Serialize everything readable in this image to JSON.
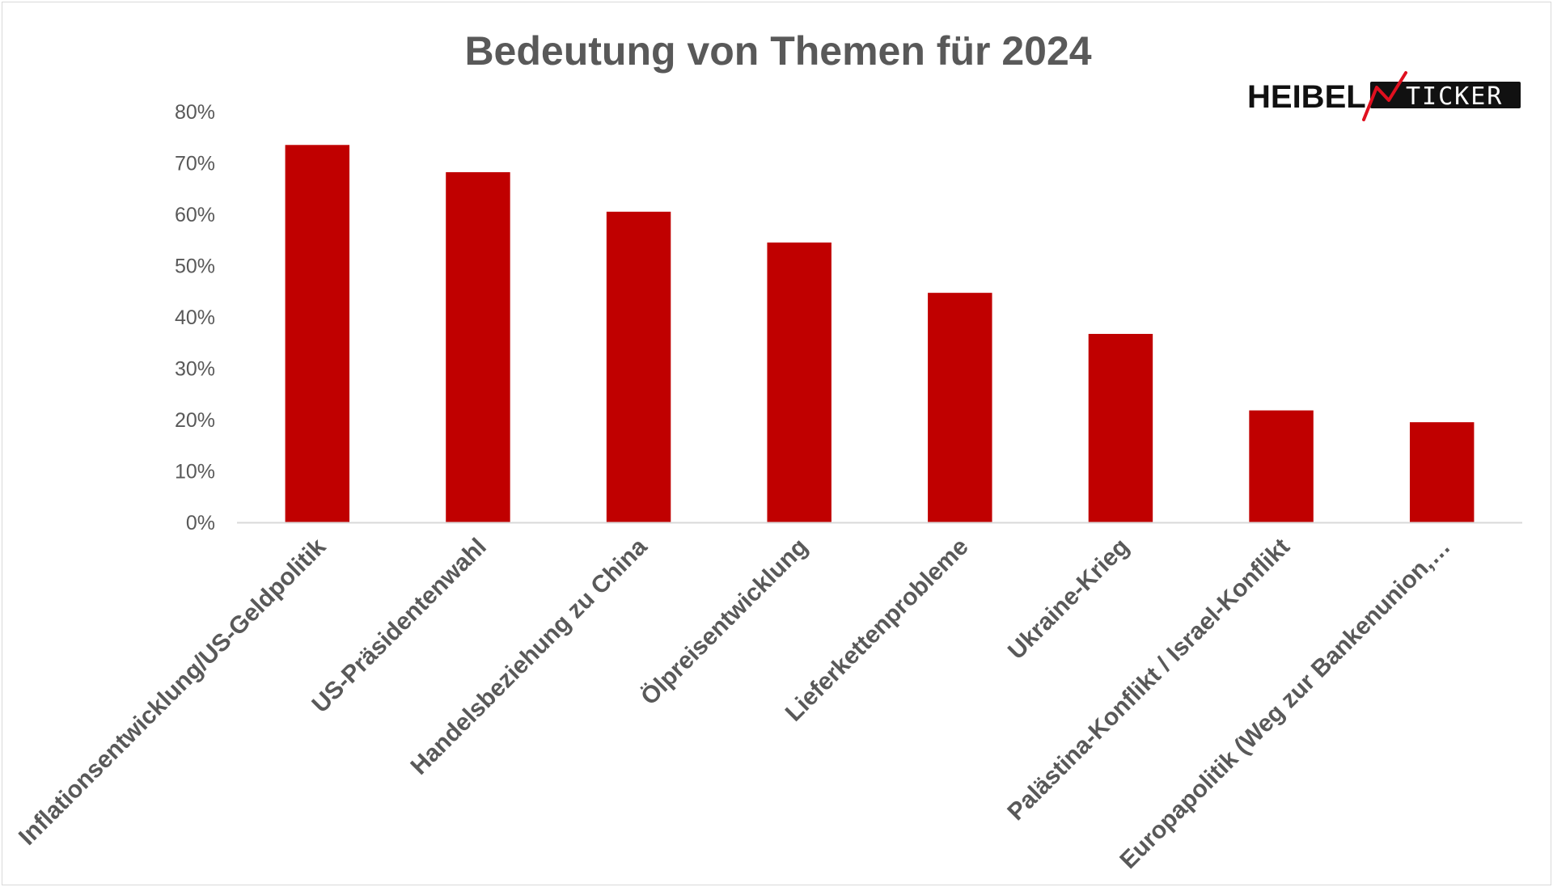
{
  "logo": {
    "word": "HEIBEL",
    "ticker": "TICKER",
    "colors": {
      "text": "#111111",
      "box": "#111111",
      "accent": "#e0101f"
    }
  },
  "chart_data": {
    "type": "bar",
    "title": "Bedeutung von Themen für 2024",
    "xlabel": "",
    "ylabel": "",
    "categories": [
      "Inflationsentwicklung/US-Geldpolitik",
      "US-Präsidentenwahl",
      "Handelsbeziehung zu China",
      "Ölpreisentwicklung",
      "Lieferkettenprobleme",
      "Ukraine-Krieg",
      "Palästina-Konflikt / Israel-Konflikt",
      "Europapolitik (Weg zur Bankenunion,…"
    ],
    "values": [
      73.5,
      68.2,
      60.5,
      54.5,
      44.7,
      36.7,
      21.8,
      19.5
    ],
    "ylim": [
      0,
      80
    ],
    "yticks": [
      0,
      10,
      20,
      30,
      40,
      50,
      60,
      70,
      80
    ],
    "ytick_format": "%",
    "grid": false,
    "legend": "none",
    "colors": {
      "bar": "#c00000",
      "axis": "#d9d9d9",
      "text": "#595959"
    }
  }
}
